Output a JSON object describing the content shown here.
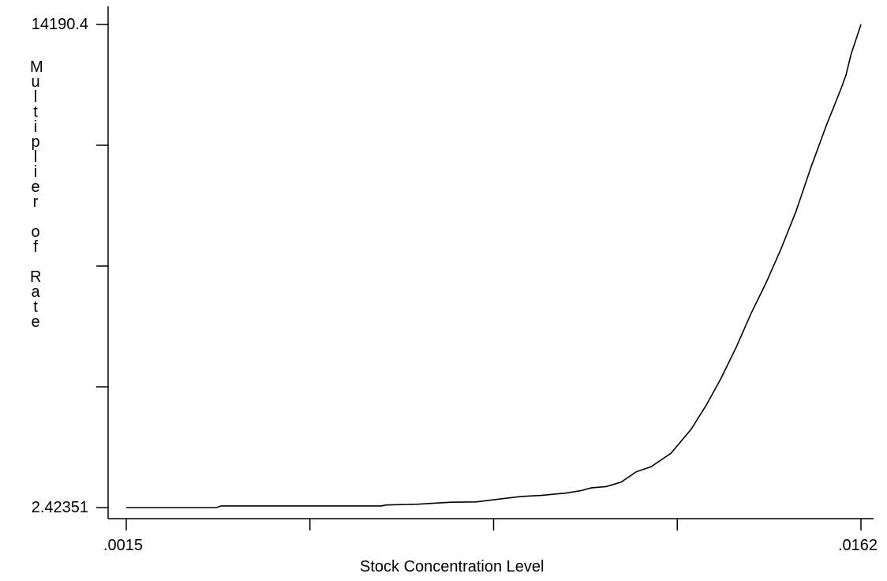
{
  "chart_data": {
    "type": "line",
    "xlabel": "Stock Concentration Level",
    "ylabel": "Multiplier of Rate",
    "xlim": [
      0.0015,
      0.0162
    ],
    "ylim": [
      2.42351,
      14190.4
    ],
    "x_tick_labels": [
      ".0015",
      "",
      "",
      "",
      ".0162"
    ],
    "y_tick_labels": [
      "14190.4",
      "",
      "",
      "",
      "2.42351"
    ],
    "series": [
      {
        "x": [
          0.0015,
          0.0033,
          0.0034,
          0.0066,
          0.0067,
          0.0073,
          0.008,
          0.0085,
          0.0094,
          0.0098,
          0.0103,
          0.0106,
          0.0108,
          0.0111,
          0.0114,
          0.0117,
          0.012,
          0.0124,
          0.0128,
          0.0131,
          0.0134,
          0.0137,
          0.014,
          0.0143,
          0.0146,
          0.0149,
          0.0152,
          0.0155,
          0.0158,
          0.0159,
          0.016,
          0.0162
        ],
        "y": [
          2.42,
          2.42,
          50,
          50,
          80,
          100,
          160,
          170,
          330,
          360,
          430,
          500,
          580,
          620,
          750,
          1050,
          1200,
          1600,
          2300,
          3000,
          3800,
          4700,
          5700,
          6600,
          7600,
          8700,
          10000,
          11200,
          12300,
          12700,
          13300,
          14190.4
        ]
      }
    ]
  }
}
